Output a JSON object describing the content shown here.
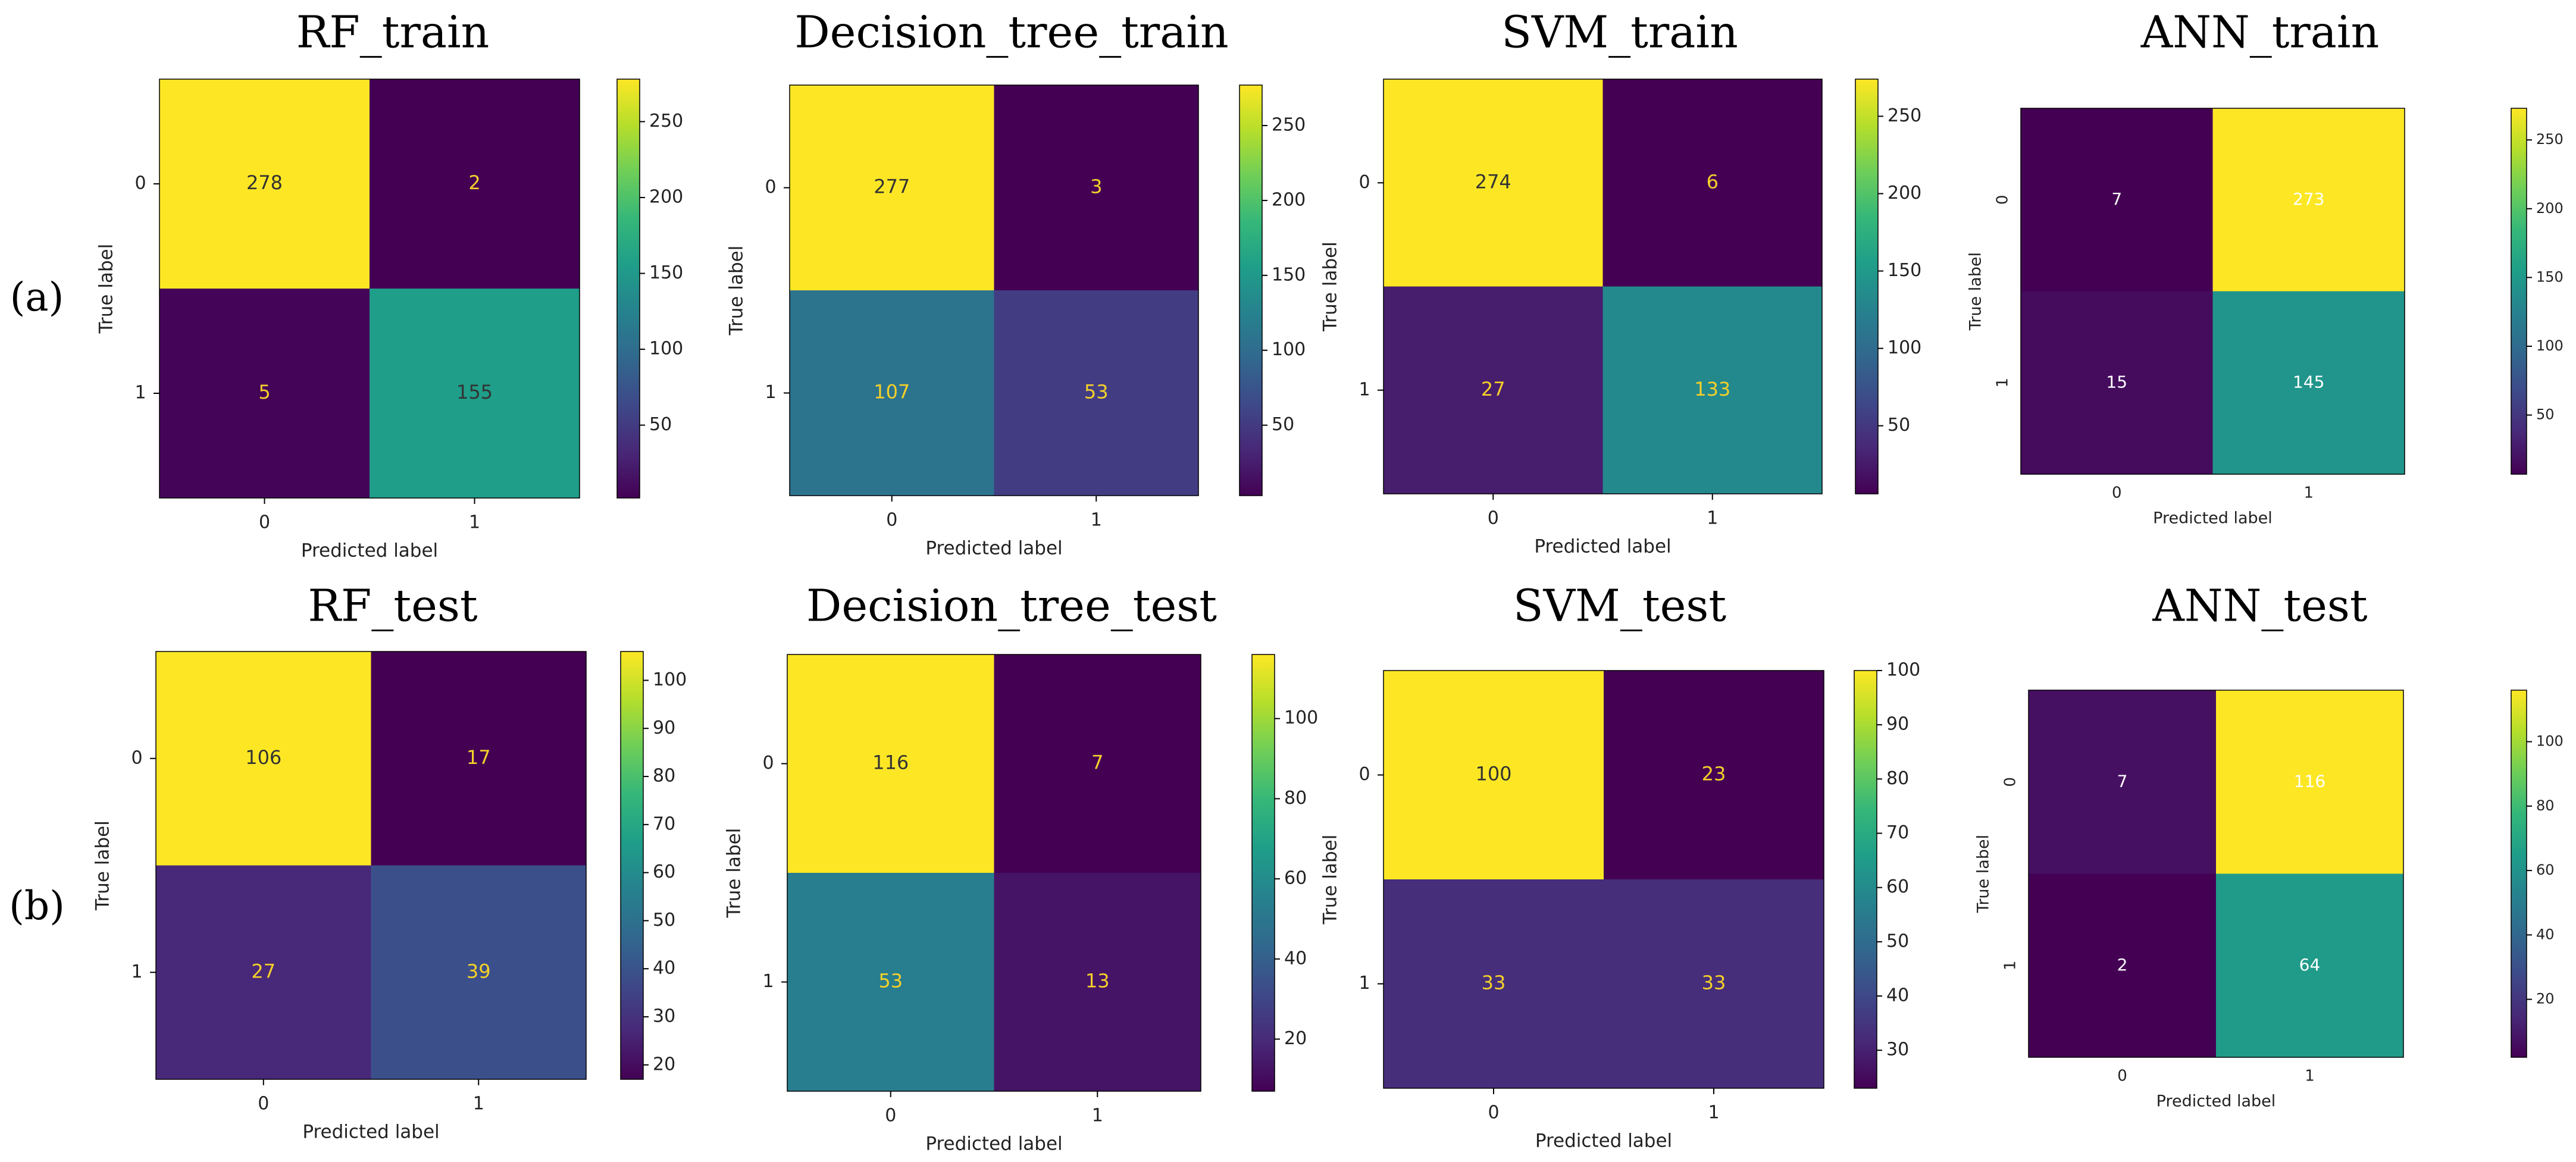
{
  "row_labels": [
    "(a)",
    "(b)"
  ],
  "chart_data": [
    {
      "type": "heatmap",
      "title": "RF_train",
      "row": 0,
      "xlabel": "Predicted label",
      "ylabel": "True label",
      "x_categories": [
        "0",
        "1"
      ],
      "y_categories": [
        "0",
        "1"
      ],
      "values": [
        [
          278,
          2
        ],
        [
          5,
          155
        ]
      ],
      "colormap": "viridis",
      "colorbar_ticks": [
        50,
        100,
        150,
        200,
        250
      ],
      "colorbar_range": [
        2,
        278
      ]
    },
    {
      "type": "heatmap",
      "title": "Decision_tree_train",
      "row": 0,
      "xlabel": "Predicted label",
      "ylabel": "True label",
      "x_categories": [
        "0",
        "1"
      ],
      "y_categories": [
        "0",
        "1"
      ],
      "values": [
        [
          277,
          3
        ],
        [
          107,
          53
        ]
      ],
      "colormap": "viridis",
      "colorbar_ticks": [
        50,
        100,
        150,
        200,
        250
      ],
      "colorbar_range": [
        3,
        277
      ]
    },
    {
      "type": "heatmap",
      "title": "SVM_train",
      "row": 0,
      "xlabel": "Predicted label",
      "ylabel": "True label",
      "x_categories": [
        "0",
        "1"
      ],
      "y_categories": [
        "0",
        "1"
      ],
      "values": [
        [
          274,
          6
        ],
        [
          27,
          133
        ]
      ],
      "colormap": "viridis",
      "colorbar_ticks": [
        50,
        100,
        150,
        200,
        250
      ],
      "colorbar_range": [
        6,
        274
      ]
    },
    {
      "type": "heatmap",
      "title": "ANN_train",
      "row": 0,
      "xlabel": "Predicted label",
      "ylabel": "True label",
      "x_categories": [
        "0",
        "1"
      ],
      "y_categories": [
        "0",
        "1"
      ],
      "values": [
        [
          7,
          273
        ],
        [
          15,
          145
        ]
      ],
      "colormap": "viridis",
      "colorbar_ticks": [
        50,
        100,
        150,
        200,
        250
      ],
      "colorbar_range": [
        7,
        273
      ],
      "rotate_y_ticks": true
    },
    {
      "type": "heatmap",
      "title": "RF_test",
      "row": 1,
      "xlabel": "Predicted label",
      "ylabel": "True label",
      "x_categories": [
        "0",
        "1"
      ],
      "y_categories": [
        "0",
        "1"
      ],
      "values": [
        [
          106,
          17
        ],
        [
          27,
          39
        ]
      ],
      "colormap": "viridis",
      "colorbar_ticks": [
        20,
        30,
        40,
        50,
        60,
        70,
        80,
        90,
        100
      ],
      "colorbar_range": [
        17,
        106
      ]
    },
    {
      "type": "heatmap",
      "title": "Decision_tree_test",
      "row": 1,
      "xlabel": "Predicted label",
      "ylabel": "True label",
      "x_categories": [
        "0",
        "1"
      ],
      "y_categories": [
        "0",
        "1"
      ],
      "values": [
        [
          116,
          7
        ],
        [
          53,
          13
        ]
      ],
      "colormap": "viridis",
      "colorbar_ticks": [
        20,
        40,
        60,
        80,
        100
      ],
      "colorbar_range": [
        7,
        116
      ]
    },
    {
      "type": "heatmap",
      "title": "SVM_test",
      "row": 1,
      "xlabel": "Predicted label",
      "ylabel": "True label",
      "x_categories": [
        "0",
        "1"
      ],
      "y_categories": [
        "0",
        "1"
      ],
      "values": [
        [
          100,
          23
        ],
        [
          33,
          33
        ]
      ],
      "colormap": "viridis",
      "colorbar_ticks": [
        30,
        40,
        50,
        60,
        70,
        80,
        90,
        100
      ],
      "colorbar_range": [
        23,
        100
      ]
    },
    {
      "type": "heatmap",
      "title": "ANN_test",
      "row": 1,
      "xlabel": "Predicted label",
      "ylabel": "True label",
      "x_categories": [
        "0",
        "1"
      ],
      "y_categories": [
        "0",
        "1"
      ],
      "values": [
        [
          7,
          116
        ],
        [
          2,
          64
        ]
      ],
      "colormap": "viridis",
      "colorbar_ticks": [
        20,
        40,
        60,
        80,
        100
      ],
      "colorbar_range": [
        2,
        116
      ],
      "rotate_y_ticks": true
    }
  ]
}
